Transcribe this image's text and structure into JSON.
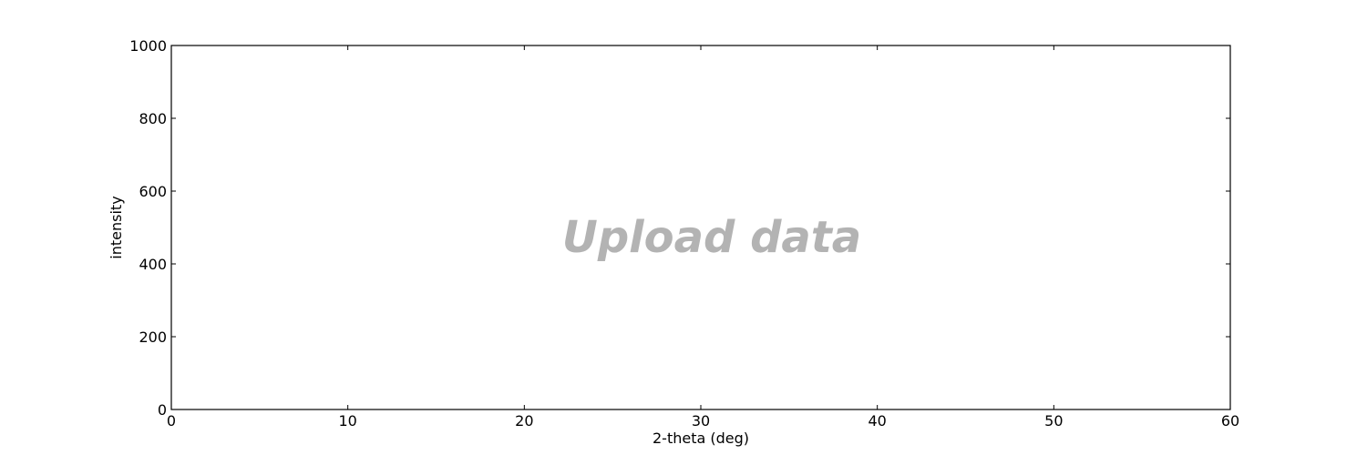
{
  "chart_data": {
    "type": "line",
    "title": "",
    "xlabel": "2-theta (deg)",
    "ylabel": "intensity",
    "xlim": [
      0,
      60
    ],
    "ylim": [
      0,
      1000
    ],
    "xticks": [
      0,
      10,
      20,
      30,
      40,
      50,
      60
    ],
    "yticks": [
      0,
      200,
      400,
      600,
      800,
      1000
    ],
    "grid": false,
    "series": [],
    "placeholder_text": "Upload data",
    "placeholder_color": "#b3b3b3"
  }
}
